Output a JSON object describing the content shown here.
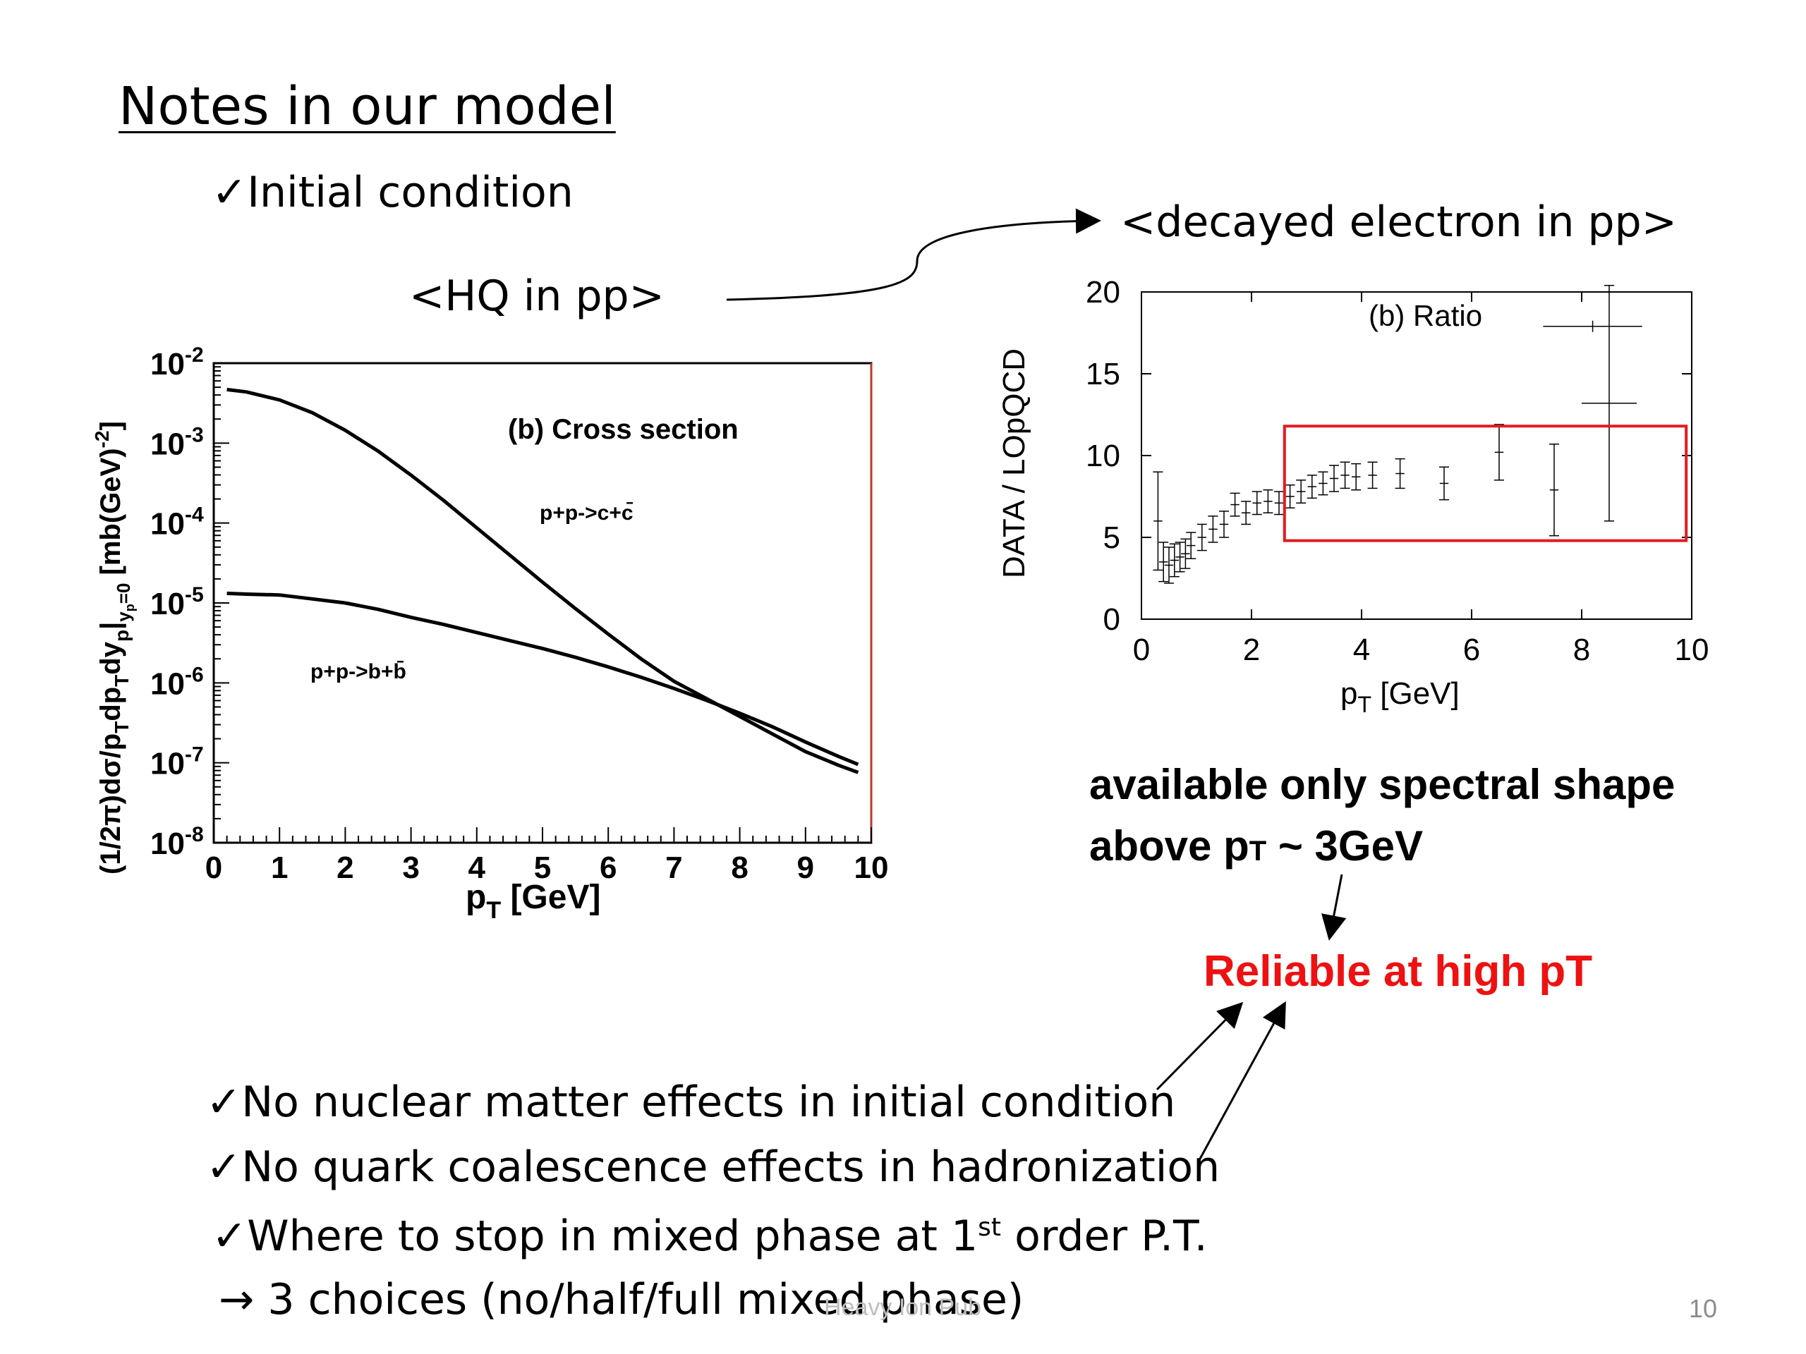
{
  "slide": {
    "title": "Notes in our model",
    "check_mark": "✓",
    "initial_condition": "Initial condition",
    "hq_label": "<HQ in pp>",
    "decayed_label": "<decayed electron in pp>",
    "available_line1": "available only spectral shape",
    "available_line2_prefix": "above p",
    "available_line2_sub": "T",
    "available_line2_suffix": " ~ 3GeV",
    "reliable": "Reliable at high pT",
    "bullets": [
      "No nuclear matter effects in initial condition",
      "No quark coalescence effects in hadronization"
    ],
    "bullet3_prefix": "Where to stop in mixed phase at 1",
    "bullet3_sup": "st",
    "bullet3_suffix": " order P.T.",
    "arrow_symbol": "→",
    "bullet3_sub": " 3 choices (no/half/full mixed phase)",
    "footer": "Heavy Ion Pub",
    "page_number": "10",
    "colors": {
      "reliable": "#ee1111",
      "highlight_box": "#e11b22",
      "text": "#000000"
    }
  },
  "chart_data": [
    {
      "type": "line",
      "title": "(b) Cross section",
      "xlabel": "p_T [GeV]",
      "ylabel": "(1/2π)dσ/p_T dp_T dy_p|_(y_p=0) [mb(GeV)^-2]",
      "xlim": [
        0,
        10
      ],
      "ylim_log10": [
        -8,
        -2
      ],
      "y_scale": "log",
      "xticks": [
        "0",
        "1",
        "2",
        "3",
        "4",
        "5",
        "6",
        "7",
        "8",
        "9",
        "10"
      ],
      "yticks": [
        {
          "base": "10",
          "exp": "-2"
        },
        {
          "base": "10",
          "exp": "-3"
        },
        {
          "base": "10",
          "exp": "-4"
        },
        {
          "base": "10",
          "exp": "-5"
        },
        {
          "base": "10",
          "exp": "-6"
        },
        {
          "base": "10",
          "exp": "-7"
        },
        {
          "base": "10",
          "exp": "-8"
        }
      ],
      "series": [
        {
          "name": "p+p->c+c̄",
          "x": [
            0.2,
            0.5,
            1,
            1.5,
            2,
            2.5,
            3,
            3.5,
            4,
            4.5,
            5,
            5.5,
            6,
            6.5,
            7,
            7.5,
            8,
            8.5,
            9,
            9.5,
            9.8
          ],
          "log10_y": [
            -2.33,
            -2.36,
            -2.46,
            -2.62,
            -2.84,
            -3.1,
            -3.4,
            -3.72,
            -4.06,
            -4.4,
            -4.74,
            -5.07,
            -5.39,
            -5.7,
            -5.98,
            -6.2,
            -6.42,
            -6.64,
            -6.86,
            -7.03,
            -7.12
          ]
        },
        {
          "name": "p+p->b+b̄",
          "x": [
            0.2,
            0.5,
            1,
            1.5,
            2,
            2.5,
            3,
            3.5,
            4,
            4.5,
            5,
            5.5,
            6,
            6.5,
            7,
            7.5,
            8,
            8.5,
            9,
            9.5,
            9.8
          ],
          "log10_y": [
            -4.88,
            -4.89,
            -4.9,
            -4.95,
            -5.0,
            -5.08,
            -5.18,
            -5.27,
            -5.37,
            -5.47,
            -5.57,
            -5.68,
            -5.8,
            -5.93,
            -6.07,
            -6.22,
            -6.38,
            -6.55,
            -6.74,
            -6.92,
            -7.02
          ]
        }
      ]
    },
    {
      "type": "scatter",
      "title": "(b) Ratio",
      "xlabel_main": "p",
      "xlabel_sub": "T",
      "xlabel_suffix": " [GeV]",
      "ylabel": "DATA / LOpQCD",
      "xlim": [
        0,
        10
      ],
      "ylim": [
        0,
        20
      ],
      "xticks": [
        "0",
        "2",
        "4",
        "6",
        "8",
        "10"
      ],
      "yticks": [
        "0",
        "5",
        "10",
        "15",
        "20"
      ],
      "highlight_box": {
        "x": [
          2.6,
          9.9
        ],
        "y": [
          4.8,
          11.8
        ]
      },
      "points": [
        {
          "x": 0.3,
          "y": 6.0,
          "err": 3.0
        },
        {
          "x": 0.4,
          "y": 3.5,
          "err": 1.2
        },
        {
          "x": 0.5,
          "y": 3.3,
          "err": 1.1
        },
        {
          "x": 0.6,
          "y": 3.6,
          "err": 1.0
        },
        {
          "x": 0.7,
          "y": 3.8,
          "err": 0.9
        },
        {
          "x": 0.8,
          "y": 4.0,
          "err": 0.9
        },
        {
          "x": 0.9,
          "y": 4.5,
          "err": 0.8
        },
        {
          "x": 1.1,
          "y": 5.0,
          "err": 0.8
        },
        {
          "x": 1.3,
          "y": 5.5,
          "err": 0.8
        },
        {
          "x": 1.5,
          "y": 5.8,
          "err": 0.8
        },
        {
          "x": 1.7,
          "y": 7.0,
          "err": 0.7
        },
        {
          "x": 1.9,
          "y": 6.5,
          "err": 0.7
        },
        {
          "x": 2.1,
          "y": 7.1,
          "err": 0.7
        },
        {
          "x": 2.3,
          "y": 7.2,
          "err": 0.7
        },
        {
          "x": 2.5,
          "y": 7.1,
          "err": 0.7
        },
        {
          "x": 2.7,
          "y": 7.5,
          "err": 0.7
        },
        {
          "x": 2.9,
          "y": 7.8,
          "err": 0.7
        },
        {
          "x": 3.1,
          "y": 8.1,
          "err": 0.7
        },
        {
          "x": 3.3,
          "y": 8.3,
          "err": 0.7
        },
        {
          "x": 3.5,
          "y": 8.6,
          "err": 0.8
        },
        {
          "x": 3.7,
          "y": 8.8,
          "err": 0.8
        },
        {
          "x": 3.9,
          "y": 8.7,
          "err": 0.8
        },
        {
          "x": 4.2,
          "y": 8.8,
          "err": 0.8
        },
        {
          "x": 4.7,
          "y": 8.9,
          "err": 0.9
        },
        {
          "x": 5.5,
          "y": 8.3,
          "err": 1.0
        },
        {
          "x": 6.5,
          "y": 10.2,
          "err": 1.7
        },
        {
          "x": 7.5,
          "y": 7.9,
          "err": 2.8
        },
        {
          "x": 8.5,
          "y": 13.2,
          "err": 7.2,
          "xerr": 0.5
        }
      ]
    }
  ]
}
